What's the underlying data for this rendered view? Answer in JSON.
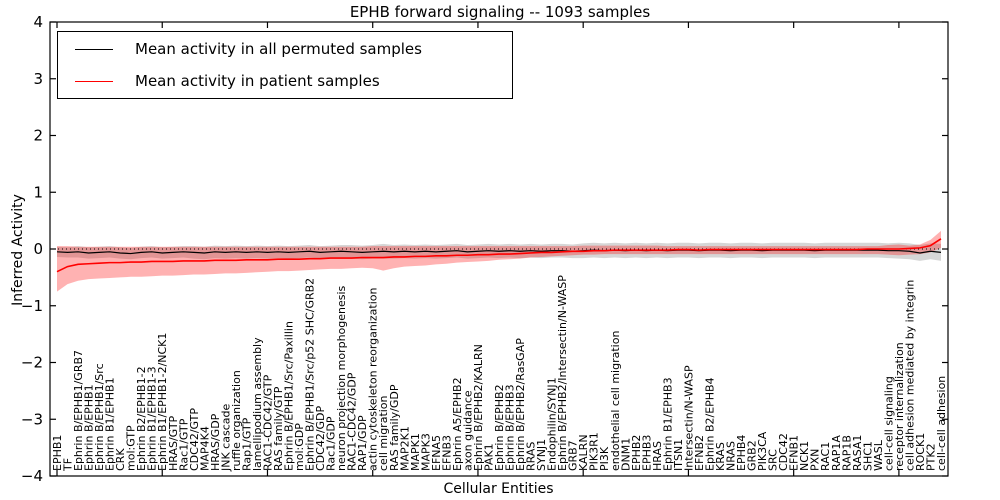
{
  "figure": {
    "title": "EPHB forward signaling -- 1093 samples",
    "xlabel": "Cellular Entities",
    "ylabel": "Inferred Activity"
  },
  "legend": {
    "entries": [
      {
        "label": "Mean activity in all permuted samples",
        "color": "#000000"
      },
      {
        "label": "Mean activity in patient samples",
        "color": "#ff0000"
      }
    ]
  },
  "chart_data": {
    "type": "line",
    "title": "EPHB forward signaling -- 1093 samples",
    "xlabel": "Cellular Entities",
    "ylabel": "Inferred Activity",
    "ylim": [
      -4,
      4
    ],
    "yticks": [
      -4,
      -3,
      -2,
      -1,
      0,
      1,
      2,
      3,
      4
    ],
    "grid": false,
    "zero_line": "dotted",
    "legend_position": "upper left",
    "x_major_tick_every": 10,
    "categories": [
      "EPHB1",
      "TF",
      "Ephrin B/EPHB1/GRB7",
      "Ephrin B/EPHB1",
      "Ephrin B/EPHB1/Src",
      "Ephrin B1/EPHB1",
      "CRK",
      "mol:GTP",
      "Ephrin B2/EPHB1-2",
      "Ephrin B1/EPHB1-3",
      "Ephrin B1/EPHB1-2/NCK1",
      "HRAS/GTP",
      "Rac1/GTP",
      "CDC42/GTP",
      "MAP4K4",
      "HRAS/GDP",
      "JNK cascade",
      "ruffle organization",
      "Rap1/GTP",
      "lamellipodium assembly",
      "RAC1-CDC42/GTP",
      "RAS family/GTP",
      "Ephrin B/EPHB1/Src/Paxillin",
      "mol:GDP",
      "Ephrin B/EPHB1/Src/p52 SHC/GRB2",
      "CDC42/GDP",
      "Rac1/GDP",
      "neuron projection morphogenesis",
      "RAC1-CDC42/GDP",
      "RAP1/GDP",
      "actin cytoskeleton reorganization",
      "cell migration",
      "RAS family/GDP",
      "MAP2K1",
      "MAPK1",
      "MAPK3",
      "EFNA5",
      "EFNB3",
      "Ephrin A5/EPHB2",
      "axon guidance",
      "Ephrin B/EPHB2/KALRN",
      "PAK1",
      "Ephrin B/EPHB2",
      "Ephrin B/EPHB3",
      "Ephrin B/EPHB2/RasGAP",
      "RRAS",
      "SYNJ1",
      "Endophilin/SYNJ1",
      "Ephrin B/EPHB2/Intersectin/N-WASP",
      "GRB7",
      "KALRN",
      "PIK3R1",
      "PI3K",
      "endothelial cell migration",
      "DNM1",
      "EPHB2",
      "EPHB3",
      "HRAS",
      "Ephrin B1/EPHB3",
      "ITSN1",
      "Intersectin/N-WASP",
      "EFNB2",
      "Ephrin B2/EPHB4",
      "KRAS",
      "NRAS",
      "EPHB4",
      "GRB2",
      "PIK3CA",
      "SRC",
      "CDC42",
      "EFNB1",
      "NCK1",
      "PXN",
      "RAC1",
      "RAP1A",
      "RAP1B",
      "RASA1",
      "SHC1",
      "WASL",
      "cell-cell signaling",
      "receptor internalization",
      "cell adhesion mediated by integrin",
      "ROCK1",
      "PTK2",
      "cell-cell adhesion"
    ],
    "series": [
      {
        "name": "Mean activity in all permuted samples",
        "color": "#000000",
        "band_color": "#000000",
        "band_opacity": 0.16,
        "values": [
          -0.05,
          -0.06,
          -0.05,
          -0.07,
          -0.06,
          -0.05,
          -0.07,
          -0.08,
          -0.06,
          -0.05,
          -0.07,
          -0.06,
          -0.05,
          -0.06,
          -0.07,
          -0.05,
          -0.06,
          -0.05,
          -0.06,
          -0.05,
          -0.06,
          -0.05,
          -0.06,
          -0.05,
          -0.04,
          -0.06,
          -0.05,
          -0.04,
          -0.05,
          -0.06,
          -0.05,
          -0.04,
          -0.05,
          -0.04,
          -0.05,
          -0.04,
          -0.05,
          -0.04,
          -0.03,
          -0.05,
          -0.04,
          -0.03,
          -0.04,
          -0.03,
          -0.04,
          -0.03,
          -0.04,
          -0.03,
          -0.03,
          -0.04,
          -0.03,
          -0.02,
          -0.03,
          -0.02,
          -0.03,
          -0.02,
          -0.03,
          -0.02,
          -0.03,
          -0.02,
          -0.02,
          -0.03,
          -0.02,
          -0.02,
          -0.03,
          -0.02,
          -0.02,
          -0.03,
          -0.02,
          -0.02,
          -0.02,
          -0.02,
          -0.03,
          -0.02,
          -0.02,
          -0.02,
          -0.02,
          -0.02,
          -0.02,
          -0.03,
          -0.03,
          -0.04,
          -0.07,
          -0.04,
          -0.06
        ],
        "band_halfwidth": [
          0.09,
          0.09,
          0.1,
          0.1,
          0.1,
          0.1,
          0.1,
          0.1,
          0.1,
          0.1,
          0.1,
          0.1,
          0.1,
          0.11,
          0.11,
          0.11,
          0.11,
          0.11,
          0.11,
          0.11,
          0.11,
          0.11,
          0.11,
          0.11,
          0.11,
          0.11,
          0.11,
          0.11,
          0.12,
          0.12,
          0.12,
          0.13,
          0.12,
          0.12,
          0.12,
          0.12,
          0.12,
          0.12,
          0.12,
          0.12,
          0.12,
          0.12,
          0.12,
          0.12,
          0.12,
          0.12,
          0.12,
          0.12,
          0.12,
          0.12,
          0.13,
          0.13,
          0.13,
          0.13,
          0.13,
          0.13,
          0.13,
          0.13,
          0.13,
          0.13,
          0.13,
          0.13,
          0.13,
          0.13,
          0.13,
          0.13,
          0.13,
          0.13,
          0.13,
          0.13,
          0.13,
          0.13,
          0.13,
          0.13,
          0.13,
          0.13,
          0.13,
          0.13,
          0.13,
          0.13,
          0.14,
          0.14,
          0.14,
          0.14,
          0.15
        ]
      },
      {
        "name": "Mean activity in patient samples",
        "color": "#ff0000",
        "band_color": "#ff0000",
        "band_opacity": 0.3,
        "values": [
          -0.4,
          -0.31,
          -0.27,
          -0.26,
          -0.25,
          -0.24,
          -0.24,
          -0.23,
          -0.23,
          -0.22,
          -0.22,
          -0.22,
          -0.21,
          -0.21,
          -0.21,
          -0.2,
          -0.2,
          -0.2,
          -0.19,
          -0.19,
          -0.19,
          -0.18,
          -0.18,
          -0.18,
          -0.17,
          -0.17,
          -0.16,
          -0.16,
          -0.16,
          -0.15,
          -0.15,
          -0.15,
          -0.14,
          -0.14,
          -0.13,
          -0.13,
          -0.12,
          -0.12,
          -0.11,
          -0.11,
          -0.1,
          -0.1,
          -0.09,
          -0.09,
          -0.08,
          -0.07,
          -0.06,
          -0.06,
          -0.05,
          -0.04,
          -0.04,
          -0.03,
          -0.03,
          -0.02,
          -0.02,
          -0.02,
          -0.02,
          -0.02,
          -0.02,
          -0.01,
          -0.01,
          -0.02,
          -0.01,
          -0.01,
          -0.01,
          -0.01,
          -0.01,
          -0.01,
          -0.01,
          -0.01,
          -0.01,
          -0.01,
          -0.01,
          -0.01,
          -0.01,
          -0.01,
          -0.01,
          0.0,
          0.0,
          0.0,
          0.0,
          0.01,
          0.02,
          0.06,
          0.18
        ],
        "band_lower": [
          -0.75,
          -0.62,
          -0.56,
          -0.53,
          -0.52,
          -0.51,
          -0.5,
          -0.49,
          -0.49,
          -0.48,
          -0.47,
          -0.47,
          -0.46,
          -0.45,
          -0.45,
          -0.44,
          -0.43,
          -0.43,
          -0.42,
          -0.41,
          -0.4,
          -0.39,
          -0.39,
          -0.38,
          -0.37,
          -0.36,
          -0.35,
          -0.35,
          -0.34,
          -0.33,
          -0.34,
          -0.38,
          -0.34,
          -0.31,
          -0.3,
          -0.29,
          -0.27,
          -0.26,
          -0.24,
          -0.23,
          -0.22,
          -0.21,
          -0.19,
          -0.18,
          -0.17,
          -0.15,
          -0.14,
          -0.13,
          -0.12,
          -0.11,
          -0.1,
          -0.1,
          -0.09,
          -0.09,
          -0.09,
          -0.09,
          -0.09,
          -0.09,
          -0.09,
          -0.09,
          -0.09,
          -0.09,
          -0.09,
          -0.09,
          -0.09,
          -0.09,
          -0.09,
          -0.09,
          -0.09,
          -0.09,
          -0.09,
          -0.09,
          -0.09,
          -0.09,
          -0.09,
          -0.09,
          -0.09,
          -0.09,
          -0.09,
          -0.1,
          -0.11,
          -0.1,
          -0.09,
          -0.06,
          0.02
        ],
        "band_upper": [
          0.05,
          0.05,
          0.04,
          0.04,
          0.04,
          0.04,
          0.04,
          0.04,
          0.04,
          0.04,
          0.04,
          0.04,
          0.04,
          0.04,
          0.04,
          0.04,
          0.04,
          0.04,
          0.04,
          0.04,
          0.04,
          0.04,
          0.04,
          0.04,
          0.04,
          0.04,
          0.04,
          0.04,
          0.04,
          0.04,
          0.05,
          0.05,
          0.05,
          0.05,
          0.05,
          0.05,
          0.05,
          0.05,
          0.05,
          0.05,
          0.05,
          0.05,
          0.05,
          0.05,
          0.05,
          0.05,
          0.05,
          0.05,
          0.05,
          0.05,
          0.06,
          0.06,
          0.06,
          0.06,
          0.06,
          0.06,
          0.06,
          0.06,
          0.05,
          0.05,
          0.05,
          0.05,
          0.05,
          0.05,
          0.05,
          0.05,
          0.05,
          0.05,
          0.05,
          0.05,
          0.05,
          0.05,
          0.05,
          0.05,
          0.05,
          0.05,
          0.05,
          0.05,
          0.05,
          0.07,
          0.08,
          0.06,
          0.08,
          0.16,
          0.32
        ]
      }
    ]
  }
}
